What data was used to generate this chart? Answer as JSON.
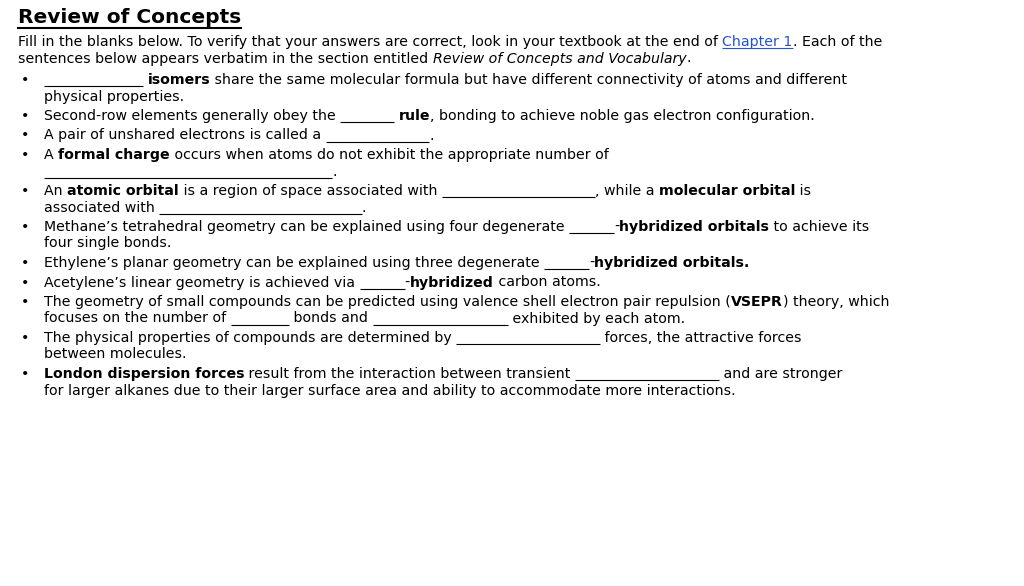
{
  "title": "Review of Concepts",
  "bg_color": "#ffffff",
  "fs_base": 10.2,
  "fs_title": 14.5,
  "lh": 16.5,
  "ml": 18,
  "ind": 26,
  "lines": [
    [
      {
        "text": "Fill in the blanks below. To verify that your answers are correct, look in your textbook at the end of "
      },
      {
        "text": "Chapter 1",
        "link": true
      },
      {
        "text": ". Each of the"
      }
    ],
    [
      {
        "text": "sentences below appears verbatim in the section entitled "
      },
      {
        "text": "Review of Concepts and Vocabulary",
        "italic": true
      },
      {
        "text": "."
      }
    ]
  ],
  "bullets": [
    {
      "lines": [
        [
          {
            "text": "                      ",
            "underline": true
          },
          {
            "text": " "
          },
          {
            "text": "isomers",
            "bold": true
          },
          {
            "text": " share the same molecular formula but have different connectivity of atoms and different"
          }
        ],
        [
          {
            "text": "physical properties."
          }
        ]
      ]
    },
    {
      "lines": [
        [
          {
            "text": "Second-row elements generally obey the "
          },
          {
            "text": "            ",
            "underline": true
          },
          {
            "text": " "
          },
          {
            "text": "rule",
            "bold": true
          },
          {
            "text": ", bonding to achieve noble gas electron configuration."
          }
        ]
      ]
    },
    {
      "lines": [
        [
          {
            "text": "A pair of unshared electrons is called a "
          },
          {
            "text": "                       ",
            "underline": true
          },
          {
            "text": "."
          }
        ]
      ]
    },
    {
      "lines": [
        [
          {
            "text": "A "
          },
          {
            "text": "formal charge",
            "bold": true
          },
          {
            "text": " occurs when atoms do not exhibit the appropriate number of"
          }
        ],
        [
          {
            "text": "                                                                ",
            "underline": true
          },
          {
            "text": "."
          }
        ]
      ]
    },
    {
      "lines": [
        [
          {
            "text": "An "
          },
          {
            "text": "atomic orbital",
            "bold": true
          },
          {
            "text": " is a region of space associated with "
          },
          {
            "text": "                                  ",
            "underline": true
          },
          {
            "text": ", while a "
          },
          {
            "text": "molecular orbital",
            "bold": true
          },
          {
            "text": " is"
          }
        ],
        [
          {
            "text": "associated with "
          },
          {
            "text": "                                             ",
            "underline": true
          },
          {
            "text": "."
          }
        ]
      ]
    },
    {
      "lines": [
        [
          {
            "text": "Methane’s tetrahedral geometry can be explained using four degenerate "
          },
          {
            "text": "          ",
            "underline": true
          },
          {
            "text": "-"
          },
          {
            "text": "hybridized orbitals",
            "bold": true
          },
          {
            "text": " to achieve its"
          }
        ],
        [
          {
            "text": "four single bonds."
          }
        ]
      ]
    },
    {
      "lines": [
        [
          {
            "text": "Ethylene’s planar geometry can be explained using three degenerate "
          },
          {
            "text": "          ",
            "underline": true
          },
          {
            "text": "-"
          },
          {
            "text": "hybridized orbitals.",
            "bold": true
          }
        ]
      ]
    },
    {
      "lines": [
        [
          {
            "text": "Acetylene’s linear geometry is achieved via "
          },
          {
            "text": "          ",
            "underline": true
          },
          {
            "text": "-"
          },
          {
            "text": "hybridized",
            "bold": true
          },
          {
            "text": " carbon atoms."
          }
        ]
      ]
    },
    {
      "lines": [
        [
          {
            "text": "The geometry of small compounds can be predicted using valence shell electron pair repulsion ("
          },
          {
            "text": "VSEPR",
            "bold": true
          },
          {
            "text": ") theory, which"
          }
        ],
        [
          {
            "text": "focuses on the number of "
          },
          {
            "text": "             ",
            "underline": true
          },
          {
            "text": " bonds and "
          },
          {
            "text": "                              ",
            "underline": true
          },
          {
            "text": " exhibited by each atom."
          }
        ]
      ]
    },
    {
      "lines": [
        [
          {
            "text": "The physical properties of compounds are determined by "
          },
          {
            "text": "                                ",
            "underline": true
          },
          {
            "text": " forces, the attractive forces"
          }
        ],
        [
          {
            "text": "between molecules."
          }
        ]
      ]
    },
    {
      "lines": [
        [
          {
            "text": "London dispersion forces",
            "bold": true
          },
          {
            "text": " result from the interaction between transient "
          },
          {
            "text": "                                ",
            "underline": true
          },
          {
            "text": " and are stronger"
          }
        ],
        [
          {
            "text": "for larger alkanes due to their larger surface area and ability to accommodate more interactions."
          }
        ]
      ]
    }
  ]
}
